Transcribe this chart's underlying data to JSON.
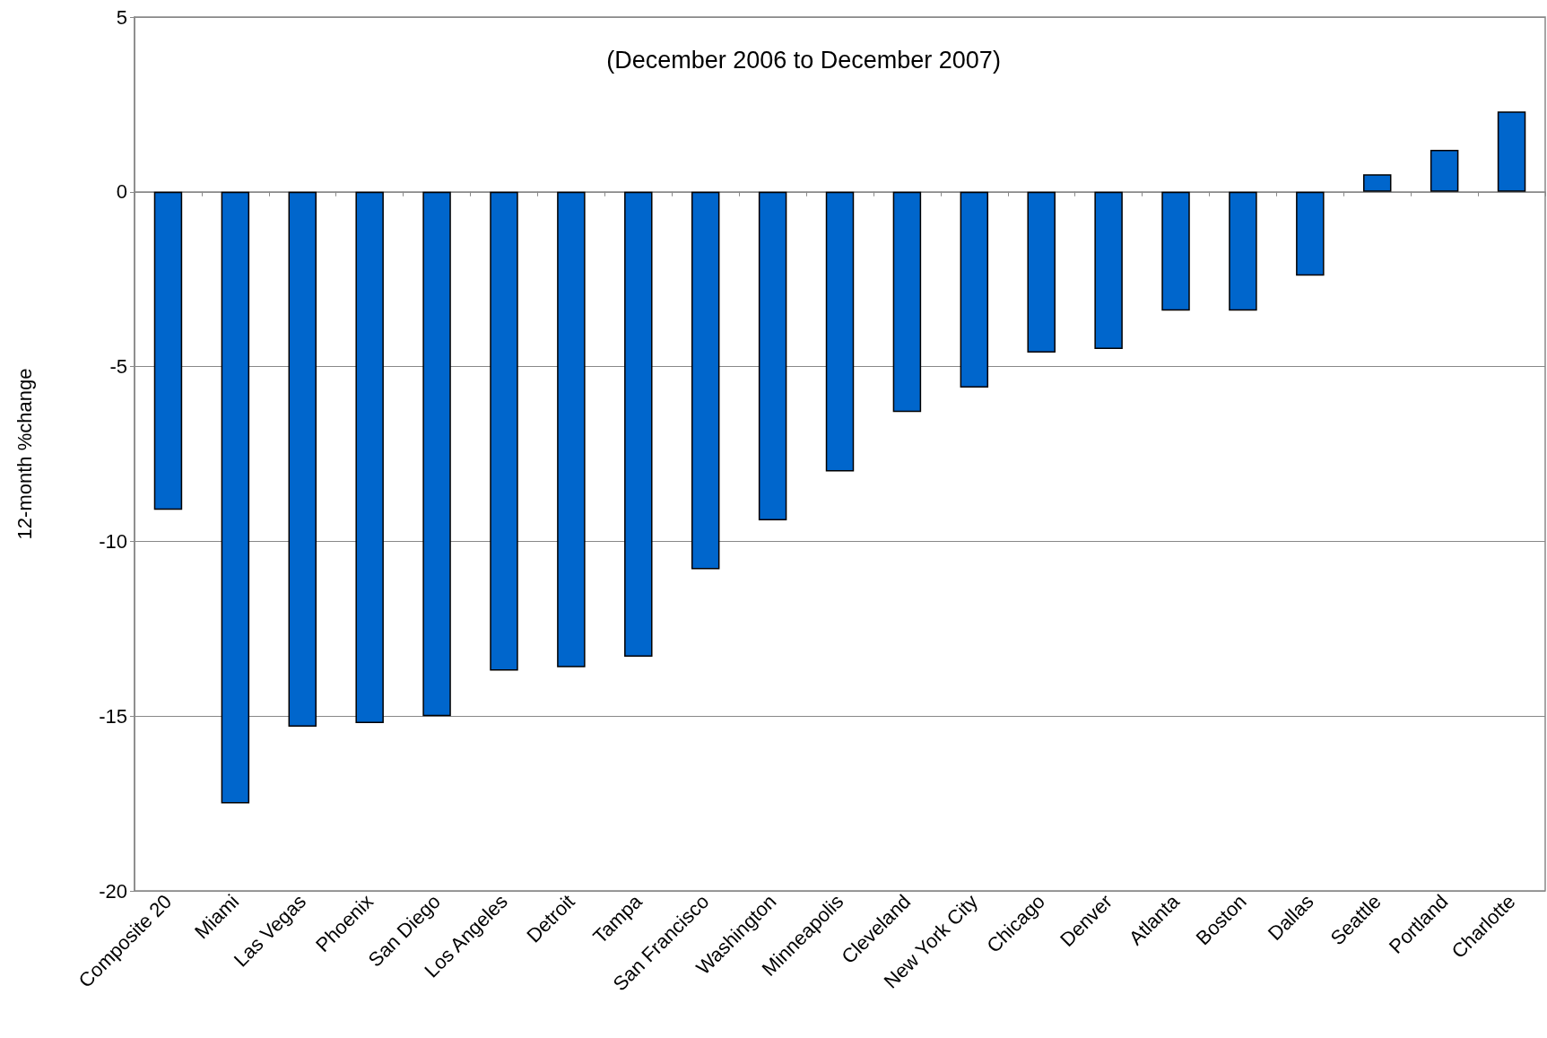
{
  "chart_data": {
    "type": "bar",
    "title": "(December 2006 to December 2007)",
    "ylabel": "12-month %change",
    "categories": [
      "Composite 20",
      "Miami",
      "Las Vegas",
      "Phoenix",
      "San Diego",
      "Los Angeles",
      "Detroit",
      "Tampa",
      "San Francisco",
      "Washington",
      "Minneapolis",
      "Cleveland",
      "New York City",
      "Chicago",
      "Denver",
      "Atlanta",
      "Boston",
      "Dallas",
      "Seattle",
      "Portland",
      "Charlotte"
    ],
    "values": [
      -9.1,
      -17.5,
      -15.3,
      -15.2,
      -15.0,
      -13.7,
      -13.6,
      -13.3,
      -10.8,
      -9.4,
      -8.0,
      -6.3,
      -5.6,
      -4.6,
      -4.5,
      -3.4,
      -3.4,
      -2.4,
      0.5,
      1.2,
      2.3
    ],
    "color": "#0066cc",
    "ylim": [
      -20,
      5
    ],
    "yticks": [
      -20,
      -15,
      -10,
      -5,
      0,
      5
    ],
    "grid": "y"
  }
}
